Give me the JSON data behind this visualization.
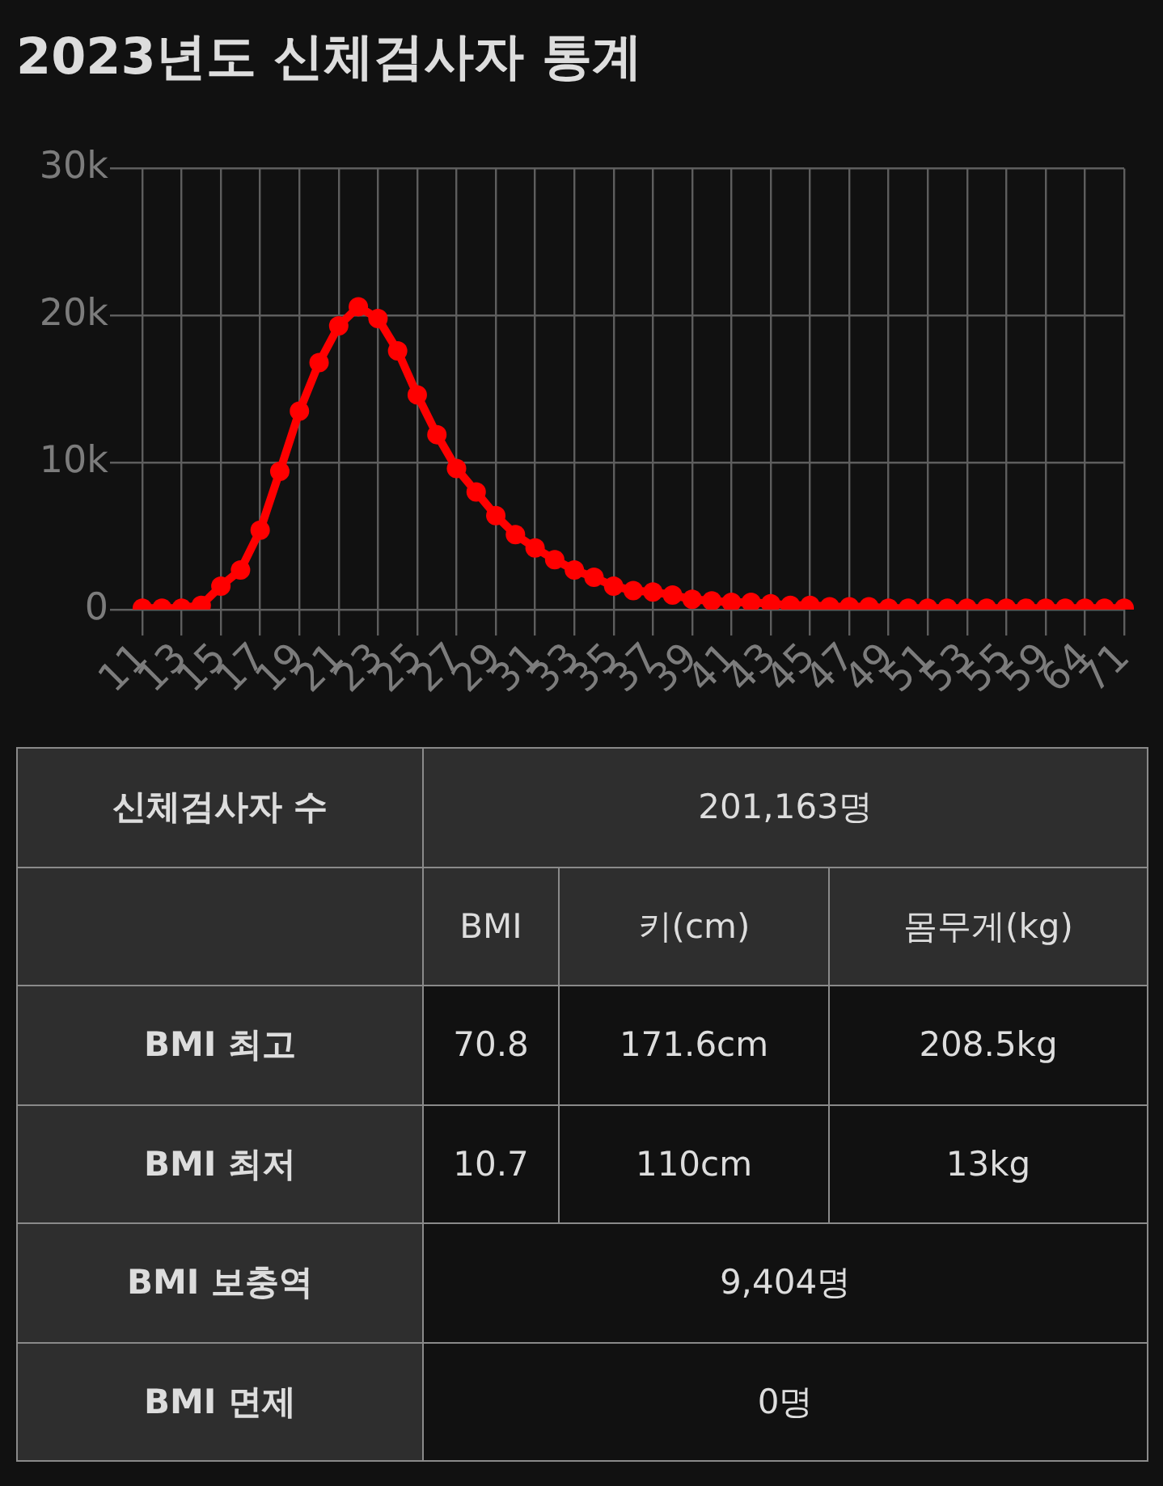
{
  "chart_data": [
    {
      "type": "line",
      "title": "2023년도 신체검사자 통계",
      "categories": [
        "11",
        null,
        "13",
        null,
        "15",
        null,
        "17",
        null,
        "19",
        null,
        "21",
        null,
        "23",
        null,
        "25",
        null,
        "27",
        null,
        "29",
        null,
        "31",
        null,
        "33",
        null,
        "35",
        null,
        "37",
        null,
        "39",
        null,
        "41",
        null,
        "43",
        null,
        "45",
        null,
        "47",
        null,
        "49",
        null,
        "51",
        null,
        "53",
        null,
        "55",
        null,
        "59",
        null,
        "64",
        null,
        "71"
      ],
      "values": [
        100,
        100,
        100,
        300,
        1600,
        2700,
        5400,
        9400,
        13500,
        16800,
        19300,
        20600,
        19800,
        17600,
        14600,
        11900,
        9600,
        8000,
        6400,
        5100,
        4200,
        3400,
        2700,
        2200,
        1600,
        1300,
        1200,
        1000,
        700,
        600,
        500,
        500,
        400,
        300,
        300,
        200,
        200,
        200,
        100,
        100,
        100,
        100,
        100,
        100,
        100,
        100,
        100,
        100,
        100,
        100,
        100
      ],
      "color": "#ff0000",
      "marker": "circle",
      "line_style": "solid",
      "ylim": [
        0,
        30000
      ],
      "yticks": [
        0,
        {
          "value": 10000,
          "label": "10k"
        },
        {
          "value": 20000,
          "label": "20k"
        },
        {
          "value": 30000,
          "label": "30k"
        }
      ],
      "grid": true
    },
    {
      "type": "other",
      "annotations": [
        "신체검사자 수",
        "201,163명",
        "BMI",
        "키(cm)",
        "몸무게(kg)",
        "BMI 최고",
        "70.8",
        "171.6cm",
        "208.5kg",
        "BMI 최저",
        "10.7",
        "110cm",
        "13kg",
        "BMI 보충역",
        "9,404명",
        "BMI 면제",
        "0명"
      ]
    }
  ]
}
